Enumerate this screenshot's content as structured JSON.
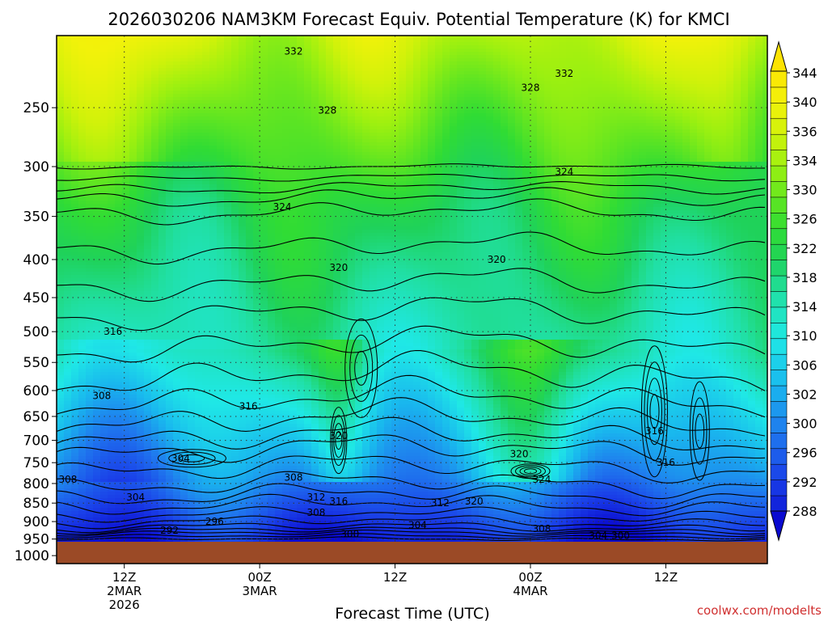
{
  "title": "2026030206 NAM3KM Forecast Equiv. Potential Temperature (K) for KMCI",
  "credit": "coolwx.com/modelts",
  "colors": {
    "ground": "#9b4a26",
    "contour": "#000000",
    "grid": "#333333",
    "credit": "#d03030"
  },
  "chart_data": {
    "type": "heatmap",
    "title": "2026030206 NAM3KM Forecast Equiv. Potential Temperature (K) for KMCI",
    "xlabel": "Forecast Time (UTC)",
    "ylabel": "",
    "y_axis": {
      "scale": "log",
      "reversed": true,
      "ticks": [
        250,
        300,
        350,
        400,
        450,
        500,
        550,
        600,
        650,
        700,
        750,
        800,
        850,
        900,
        950,
        1000
      ],
      "tick_labels": [
        "250",
        "300",
        "350",
        "400",
        "450",
        "500",
        "550",
        "600",
        "650",
        "700",
        "750",
        "800",
        "850",
        "900",
        "950",
        "1000"
      ],
      "range": [
        200,
        1025
      ]
    },
    "x_axis": {
      "range": [
        "2026-03-02 06Z",
        "2026-03-04 21Z"
      ],
      "ticks": [
        {
          "time": "2026-03-02 12Z",
          "lines": [
            "12Z",
            "2MAR",
            "2026"
          ]
        },
        {
          "time": "2026-03-03 00Z",
          "lines": [
            "00Z",
            "3MAR"
          ]
        },
        {
          "time": "2026-03-03 12Z",
          "lines": [
            "12Z"
          ]
        },
        {
          "time": "2026-03-04 00Z",
          "lines": [
            "00Z",
            "4MAR"
          ]
        },
        {
          "time": "2026-03-04 12Z",
          "lines": [
            "12Z"
          ]
        }
      ]
    },
    "grid": true,
    "colorbar": {
      "levels": [
        288,
        290,
        292,
        294,
        296,
        298,
        300,
        302,
        304,
        306,
        308,
        310,
        312,
        314,
        316,
        318,
        320,
        322,
        324,
        326,
        328,
        330,
        332,
        334,
        336,
        338,
        340,
        342,
        344
      ],
      "tick_labels": [
        "288",
        "292",
        "296",
        "300",
        "302",
        "306",
        "310",
        "314",
        "318",
        "322",
        "326",
        "330",
        "334",
        "336",
        "340",
        "344"
      ],
      "placement": "right",
      "extend": "both"
    },
    "contour_labels": [
      {
        "text": "332",
        "time": "2026-03-03 03Z",
        "pressure": 210
      },
      {
        "text": "328",
        "time": "2026-03-03 06Z",
        "pressure": 252
      },
      {
        "text": "332",
        "time": "2026-03-04 03Z",
        "pressure": 225
      },
      {
        "text": "328",
        "time": "2026-03-04 00Z",
        "pressure": 235
      },
      {
        "text": "324",
        "time": "2026-03-04 03Z",
        "pressure": 305
      },
      {
        "text": "324",
        "time": "2026-03-03 02Z",
        "pressure": 340
      },
      {
        "text": "320",
        "time": "2026-03-03 07Z",
        "pressure": 410
      },
      {
        "text": "320",
        "time": "2026-03-03 21Z",
        "pressure": 400
      },
      {
        "text": "316",
        "time": "2026-03-02 11Z",
        "pressure": 500
      },
      {
        "text": "316",
        "time": "2026-03-02 23Z",
        "pressure": 630
      },
      {
        "text": "308",
        "time": "2026-03-02 10Z",
        "pressure": 610
      },
      {
        "text": "320",
        "time": "2026-03-03 07Z",
        "pressure": 690
      },
      {
        "text": "316",
        "time": "2026-03-04 11Z",
        "pressure": 680
      },
      {
        "text": "316",
        "time": "2026-03-04 12Z",
        "pressure": 750
      },
      {
        "text": "304",
        "time": "2026-03-02 17Z",
        "pressure": 740
      },
      {
        "text": "308",
        "time": "2026-03-03 03Z",
        "pressure": 785
      },
      {
        "text": "320",
        "time": "2026-03-03 23Z",
        "pressure": 730
      },
      {
        "text": "324",
        "time": "2026-03-04 01Z",
        "pressure": 790
      },
      {
        "text": "308",
        "time": "2026-03-02 07Z",
        "pressure": 790
      },
      {
        "text": "304",
        "time": "2026-03-02 13Z",
        "pressure": 835
      },
      {
        "text": "312",
        "time": "2026-03-03 05Z",
        "pressure": 835
      },
      {
        "text": "316",
        "time": "2026-03-03 07Z",
        "pressure": 845
      },
      {
        "text": "312",
        "time": "2026-03-03 16Z",
        "pressure": 850
      },
      {
        "text": "320",
        "time": "2026-03-03 19Z",
        "pressure": 845
      },
      {
        "text": "308",
        "time": "2026-03-03 05Z",
        "pressure": 875
      },
      {
        "text": "296",
        "time": "2026-03-02 20Z",
        "pressure": 900
      },
      {
        "text": "304",
        "time": "2026-03-03 14Z",
        "pressure": 910
      },
      {
        "text": "308",
        "time": "2026-03-04 01Z",
        "pressure": 920
      },
      {
        "text": "292",
        "time": "2026-03-02 16Z",
        "pressure": 925
      },
      {
        "text": "300",
        "time": "2026-03-03 08Z",
        "pressure": 935
      },
      {
        "text": "304",
        "time": "2026-03-04 06Z",
        "pressure": 940
      },
      {
        "text": "300",
        "time": "2026-03-04 08Z",
        "pressure": 940
      }
    ]
  }
}
